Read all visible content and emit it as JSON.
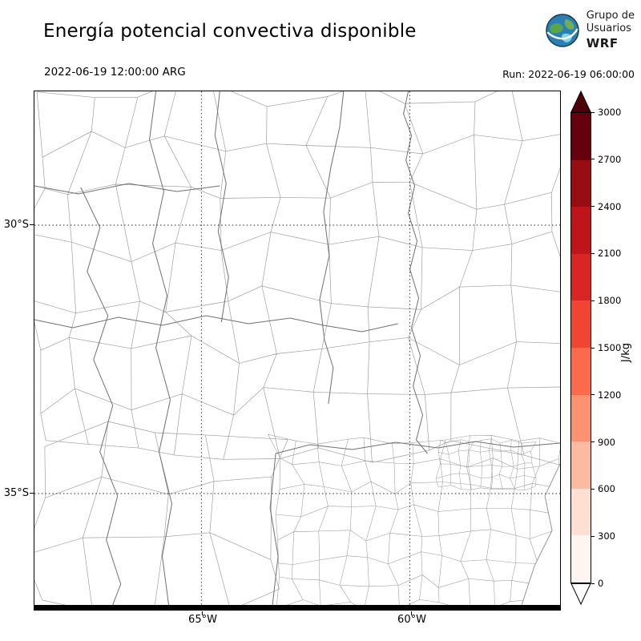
{
  "header": {
    "title": "Energía potencial convectiva disponible",
    "logo": {
      "line1": "Grupo de",
      "line2": "Usuarios",
      "line3": "WRF"
    }
  },
  "subheader": {
    "valid_time": "2022-06-19 12:00:00 ARG",
    "run_label": "Run: 2022-06-19 06:00:00"
  },
  "map": {
    "y_tick_labels": [
      "30°S",
      "35°S"
    ],
    "x_tick_labels": [
      "65°W",
      "60°W"
    ]
  },
  "colorbar": {
    "unit": "J/kg",
    "tick_labels_top_to_bottom": [
      "3000",
      "2700",
      "2400",
      "2100",
      "1800",
      "1500",
      "1200",
      "900",
      "600",
      "300",
      "0"
    ],
    "segment_colors_bottom_to_top": [
      "#fff5f0",
      "#fee0d2",
      "#fcbba1",
      "#fc9272",
      "#fb6a4a",
      "#f14432",
      "#d92523",
      "#bf151a",
      "#980c13",
      "#67000d"
    ],
    "over_arrow_color": "#4c0009",
    "under_arrow_color": "#ffffff"
  }
}
